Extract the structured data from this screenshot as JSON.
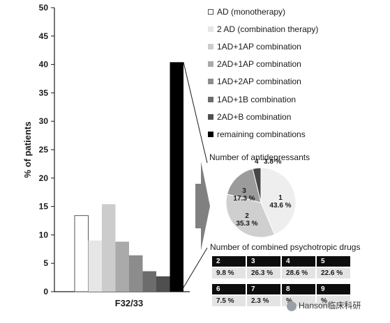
{
  "chart_data": [
    {
      "type": "bar",
      "xlabel": "F32/33",
      "ylabel": "% of patients",
      "ylim": [
        0,
        50
      ],
      "yticks": [
        0,
        5,
        10,
        15,
        20,
        25,
        30,
        35,
        40,
        45,
        50
      ],
      "categories": [
        "AD (monotherapy)",
        "2 AD (combination therapy)",
        "1AD+1AP combination",
        "2AD+1AP combination",
        "1AD+2AP combination",
        "1AD+1B combination",
        "2AD+B combination",
        "remaining combinations"
      ],
      "values": [
        13.4,
        9.0,
        15.4,
        8.8,
        6.4,
        3.6,
        2.7,
        40.4
      ],
      "colors": [
        "#ffffff",
        "#e6e6e6",
        "#cccccc",
        "#aaaaaa",
        "#8c8c8c",
        "#6c6c6c",
        "#4f4f4f",
        "#000000"
      ],
      "legend_position": "right",
      "grid": false
    },
    {
      "type": "pie",
      "title": "Number of antidepressants",
      "slices": [
        {
          "label": "1",
          "value": 43.6,
          "text": "43.6 %",
          "color": "#eeeeee"
        },
        {
          "label": "2",
          "value": 35.3,
          "text": "35.3 %",
          "color": "#cfcfcf"
        },
        {
          "label": "3",
          "value": 17.3,
          "text": "17.3 %",
          "color": "#9b9b9b"
        },
        {
          "label": "4",
          "value": 3.8,
          "text": "3.8 %",
          "color": "#474747"
        }
      ]
    },
    {
      "type": "table",
      "title": "Number of combined psychotropic drugs",
      "rows": [
        {
          "headers": [
            "2",
            "3",
            "4",
            "5"
          ],
          "values": [
            "9.8 %",
            "26.3 %",
            "28.6 %",
            "22.6 %"
          ]
        },
        {
          "headers": [
            "6",
            "7",
            "8",
            "9"
          ],
          "values": [
            "7.5 %",
            "2.3 %",
            "%",
            "%"
          ]
        }
      ]
    }
  ],
  "watermark": "Hanson临床科研",
  "watermark_icon": "wechat-logo-icon"
}
